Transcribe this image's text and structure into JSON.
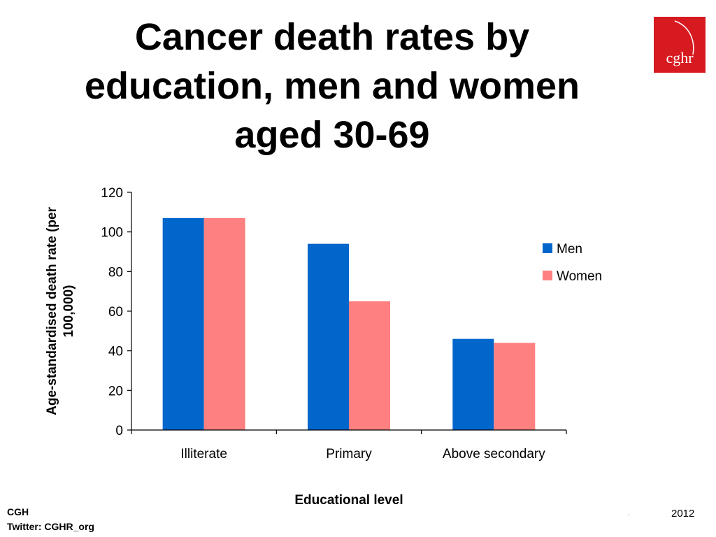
{
  "title_lines": [
    "Cancer death rates by",
    "education, men and women",
    "aged 30-69"
  ],
  "logo_text": "cghr",
  "footer": {
    "left_line1": "CGH",
    "left_line2": "Twitter: CGHR_org",
    "right_dot": ".",
    "right": "2012"
  },
  "colors": {
    "men": "#0066cc",
    "women": "#ff8080",
    "logo": "#d71920"
  },
  "chart_data": {
    "type": "bar",
    "categories": [
      "Illiterate",
      "Primary",
      "Above secondary"
    ],
    "series": [
      {
        "name": "Men",
        "values": [
          107,
          94,
          46
        ]
      },
      {
        "name": "Women",
        "values": [
          107,
          65,
          44
        ]
      }
    ],
    "xlabel": "Educational level",
    "ylabel": "Age-standardised death rate (per 100,000)",
    "ylabel_lines": [
      "Age-standardised death rate (per",
      "100,000)"
    ],
    "ylim": [
      0,
      120
    ],
    "yticks": [
      0,
      20,
      40,
      60,
      80,
      100,
      120
    ],
    "grid": false,
    "legend_position": "right"
  }
}
